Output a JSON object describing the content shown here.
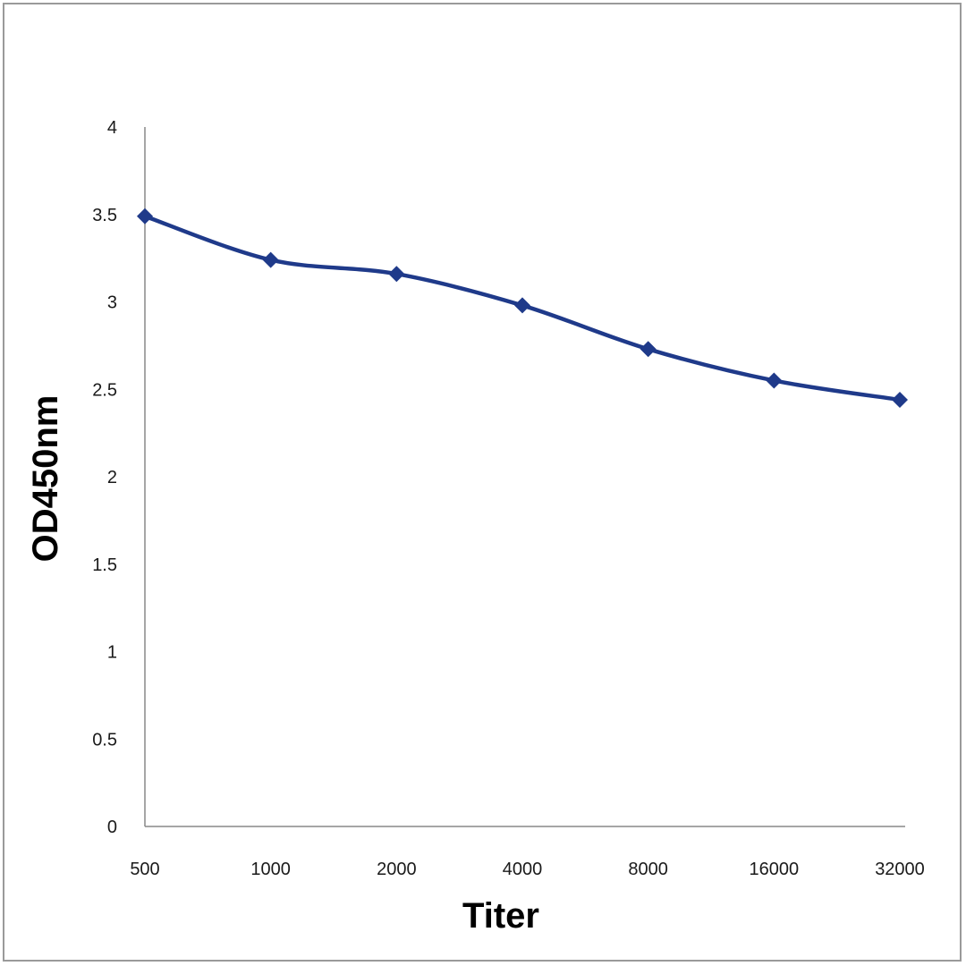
{
  "chart_data": {
    "type": "line",
    "title": "",
    "xlabel": "Titer",
    "ylabel": "OD450nm",
    "categories": [
      "500",
      "1000",
      "2000",
      "4000",
      "8000",
      "16000",
      "32000"
    ],
    "series": [
      {
        "values": [
          3.49,
          3.24,
          3.16,
          2.98,
          2.73,
          2.55,
          2.44
        ]
      }
    ],
    "ylim": [
      0,
      4
    ],
    "yticks": [
      "0",
      "0.5",
      "1",
      "1.5",
      "2",
      "2.5",
      "3",
      "3.5",
      "4"
    ],
    "grid": false,
    "legend": "none",
    "colors": {
      "series": "#1f3a8a",
      "axis": "#888888"
    }
  }
}
